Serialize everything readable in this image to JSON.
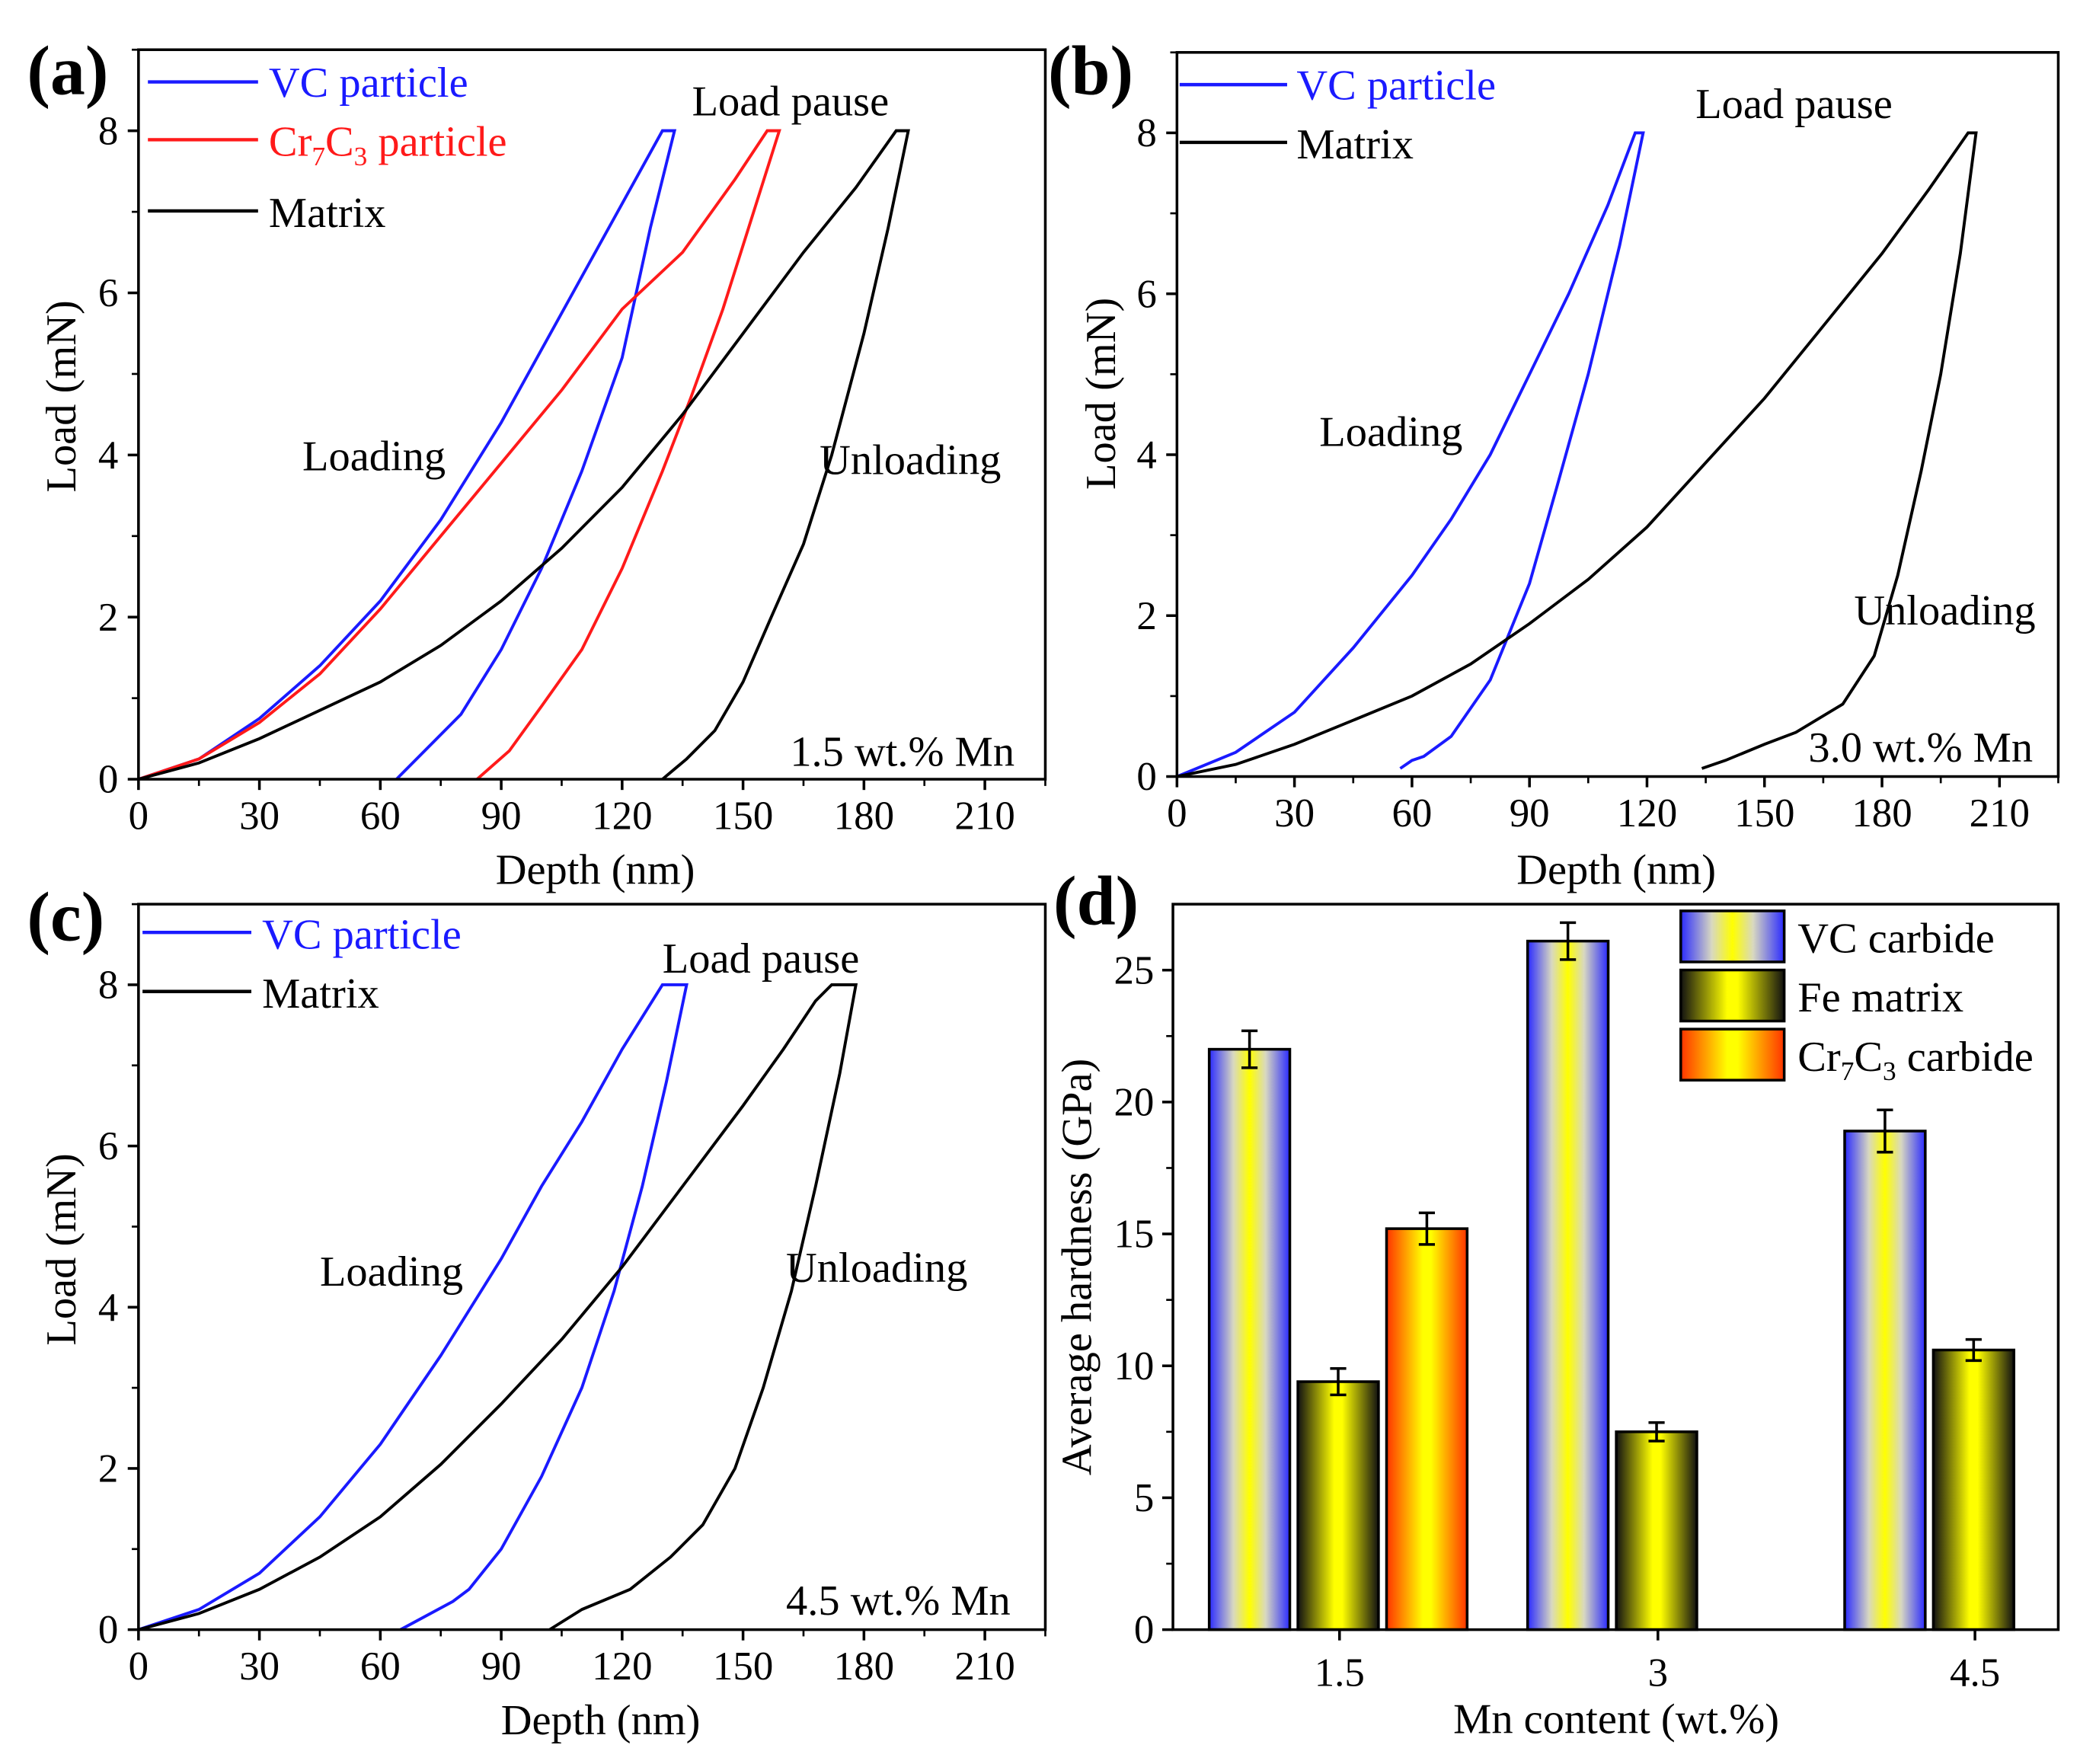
{
  "chart_data": [
    {
      "type": "line",
      "panel_label": "(a)",
      "xlabel": "Depth (nm)",
      "ylabel": "Load (mN)",
      "xlim": [
        0,
        225
      ],
      "ylim": [
        0,
        9
      ],
      "xticks": [
        "0",
        "30",
        "60",
        "90",
        "120",
        "150",
        "180",
        "210"
      ],
      "yticks": [
        "0",
        "2",
        "4",
        "6",
        "8"
      ],
      "annotations": {
        "load_pause": "Load pause",
        "loading": "Loading",
        "unloading": "Unloading",
        "condition": "1.5 wt.% Mn"
      },
      "legend_position": "top-left",
      "series": [
        {
          "name": "VC particle",
          "color": "#1a1aff",
          "points": [
            [
              0,
              0
            ],
            [
              15,
              0.25
            ],
            [
              30,
              0.75
            ],
            [
              45,
              1.4
            ],
            [
              60,
              2.2
            ],
            [
              75,
              3.2
            ],
            [
              90,
              4.4
            ],
            [
              100,
              5.3
            ],
            [
              110,
              6.2
            ],
            [
              120,
              7.1
            ],
            [
              130,
              8
            ],
            [
              133,
              8
            ],
            [
              127,
              6.8
            ],
            [
              120,
              5.2
            ],
            [
              110,
              3.8
            ],
            [
              100,
              2.6
            ],
            [
              90,
              1.6
            ],
            [
              80,
              0.8
            ],
            [
              70,
              0.3
            ],
            [
              64,
              0
            ]
          ]
        },
        {
          "name": "Cr7C3 particle",
          "name_parts": {
            "base1": "Cr",
            "sub1": "7",
            "base2": "C",
            "sub2": "3",
            "rest": " particle"
          },
          "color": "#ff1a1a",
          "points": [
            [
              0,
              0
            ],
            [
              15,
              0.25
            ],
            [
              30,
              0.7
            ],
            [
              45,
              1.3
            ],
            [
              60,
              2.1
            ],
            [
              75,
              3
            ],
            [
              90,
              3.9
            ],
            [
              105,
              4.8
            ],
            [
              120,
              5.8
            ],
            [
              135,
              6.5
            ],
            [
              148,
              7.4
            ],
            [
              156,
              8
            ],
            [
              159,
              8
            ],
            [
              152,
              6.9
            ],
            [
              145,
              5.8
            ],
            [
              137,
              4.7
            ],
            [
              130,
              3.8
            ],
            [
              120,
              2.6
            ],
            [
              110,
              1.6
            ],
            [
              100,
              0.9
            ],
            [
              92,
              0.35
            ],
            [
              84,
              0
            ]
          ]
        },
        {
          "name": "Matrix",
          "color": "#000000",
          "points": [
            [
              0,
              0
            ],
            [
              15,
              0.2
            ],
            [
              30,
              0.5
            ],
            [
              45,
              0.85
            ],
            [
              60,
              1.2
            ],
            [
              75,
              1.65
            ],
            [
              90,
              2.2
            ],
            [
              105,
              2.85
            ],
            [
              120,
              3.6
            ],
            [
              135,
              4.5
            ],
            [
              150,
              5.5
            ],
            [
              165,
              6.5
            ],
            [
              178,
              7.3
            ],
            [
              188,
              8
            ],
            [
              191,
              8
            ],
            [
              186,
              6.8
            ],
            [
              180,
              5.5
            ],
            [
              172,
              4
            ],
            [
              165,
              2.9
            ],
            [
              157,
              2
            ],
            [
              150,
              1.2
            ],
            [
              143,
              0.6
            ],
            [
              136,
              0.25
            ],
            [
              130,
              0
            ]
          ]
        }
      ]
    },
    {
      "type": "line",
      "panel_label": "(b)",
      "xlabel": "Depth (nm)",
      "ylabel": "Load (mN)",
      "xlim": [
        0,
        225
      ],
      "ylim": [
        0,
        9
      ],
      "xticks": [
        "0",
        "30",
        "60",
        "90",
        "120",
        "150",
        "180",
        "210"
      ],
      "yticks": [
        "0",
        "2",
        "4",
        "6",
        "8"
      ],
      "annotations": {
        "load_pause": "Load pause",
        "loading": "Loading",
        "unloading": "Unloading",
        "condition": "3.0 wt.% Mn"
      },
      "legend_position": "top-left",
      "series": [
        {
          "name": "VC particle",
          "color": "#1a1aff",
          "points": [
            [
              0,
              0
            ],
            [
              15,
              0.3
            ],
            [
              30,
              0.8
            ],
            [
              45,
              1.6
            ],
            [
              60,
              2.5
            ],
            [
              70,
              3.2
            ],
            [
              80,
              4
            ],
            [
              90,
              5
            ],
            [
              100,
              6
            ],
            [
              110,
              7.1
            ],
            [
              117,
              8
            ],
            [
              119,
              8
            ],
            [
              113,
              6.6
            ],
            [
              105,
              5
            ],
            [
              97,
              3.6
            ],
            [
              90,
              2.4
            ],
            [
              80,
              1.2
            ],
            [
              70,
              0.5
            ],
            [
              63,
              0.25
            ],
            [
              60,
              0.2
            ],
            [
              57,
              0.1
            ]
          ]
        },
        {
          "name": "Matrix",
          "color": "#000000",
          "points": [
            [
              0,
              0
            ],
            [
              15,
              0.15
            ],
            [
              30,
              0.4
            ],
            [
              45,
              0.7
            ],
            [
              60,
              1
            ],
            [
              75,
              1.4
            ],
            [
              90,
              1.9
            ],
            [
              105,
              2.45
            ],
            [
              120,
              3.1
            ],
            [
              135,
              3.9
            ],
            [
              150,
              4.7
            ],
            [
              165,
              5.6
            ],
            [
              180,
              6.5
            ],
            [
              192,
              7.3
            ],
            [
              202,
              8
            ],
            [
              204,
              8
            ],
            [
              200,
              6.5
            ],
            [
              195,
              5
            ],
            [
              190,
              3.8
            ],
            [
              184,
              2.5
            ],
            [
              178,
              1.5
            ],
            [
              170,
              0.9
            ],
            [
              158,
              0.55
            ],
            [
              150,
              0.4
            ],
            [
              140,
              0.2
            ],
            [
              134,
              0.1
            ]
          ]
        }
      ]
    },
    {
      "type": "line",
      "panel_label": "(c)",
      "xlabel": "Depth (nm)",
      "ylabel": "Load (mN)",
      "xlim": [
        0,
        225
      ],
      "ylim": [
        0,
        9
      ],
      "xticks": [
        "0",
        "30",
        "60",
        "90",
        "120",
        "150",
        "180",
        "210"
      ],
      "yticks": [
        "0",
        "2",
        "4",
        "6",
        "8"
      ],
      "annotations": {
        "load_pause": "Load pause",
        "loading": "Loading",
        "unloading": "Unloading",
        "condition": "4.5 wt.% Mn"
      },
      "legend_position": "top-left",
      "series": [
        {
          "name": "VC particle",
          "color": "#1a1aff",
          "points": [
            [
              0,
              0
            ],
            [
              15,
              0.25
            ],
            [
              30,
              0.7
            ],
            [
              45,
              1.4
            ],
            [
              60,
              2.3
            ],
            [
              75,
              3.4
            ],
            [
              90,
              4.6
            ],
            [
              100,
              5.5
            ],
            [
              110,
              6.3
            ],
            [
              120,
              7.2
            ],
            [
              130,
              8
            ],
            [
              136,
              8
            ],
            [
              131,
              6.8
            ],
            [
              125,
              5.5
            ],
            [
              118,
              4.2
            ],
            [
              110,
              3
            ],
            [
              100,
              1.9
            ],
            [
              90,
              1
            ],
            [
              82,
              0.5
            ],
            [
              78,
              0.35
            ],
            [
              65,
              0
            ]
          ]
        },
        {
          "name": "Matrix",
          "color": "#000000",
          "points": [
            [
              0,
              0
            ],
            [
              15,
              0.2
            ],
            [
              30,
              0.5
            ],
            [
              45,
              0.9
            ],
            [
              60,
              1.4
            ],
            [
              75,
              2.05
            ],
            [
              90,
              2.8
            ],
            [
              105,
              3.6
            ],
            [
              120,
              4.5
            ],
            [
              135,
              5.5
            ],
            [
              150,
              6.5
            ],
            [
              160,
              7.2
            ],
            [
              168,
              7.8
            ],
            [
              172,
              8
            ],
            [
              178,
              8
            ],
            [
              174,
              6.9
            ],
            [
              168,
              5.5
            ],
            [
              162,
              4.2
            ],
            [
              155,
              3
            ],
            [
              148,
              2
            ],
            [
              140,
              1.3
            ],
            [
              132,
              0.9
            ],
            [
              122,
              0.5
            ],
            [
              110,
              0.25
            ],
            [
              102,
              0
            ]
          ]
        }
      ]
    },
    {
      "type": "bar",
      "panel_label": "(d)",
      "xlabel": "Mn content (wt.%)",
      "ylabel": "Average hardness (GPa)",
      "ylim": [
        0,
        27.5
      ],
      "categories": [
        "1.5",
        "3",
        "4.5"
      ],
      "yticks": [
        "0",
        "5",
        "10",
        "15",
        "20",
        "25"
      ],
      "legend_position": "top-right",
      "series": [
        {
          "name": "VC carbide",
          "gradient": [
            "#2a2aff",
            "#ffff00"
          ],
          "values": [
            22.0,
            26.1,
            18.9
          ],
          "errors": [
            0.7,
            0.7,
            0.8
          ]
        },
        {
          "name": "Fe matrix",
          "gradient": [
            "#000000",
            "#ffff00"
          ],
          "values": [
            9.4,
            7.5,
            10.6
          ],
          "errors": [
            0.5,
            0.35,
            0.4
          ]
        },
        {
          "name": "Cr7C3 carbide",
          "name_parts": {
            "base1": "Cr",
            "sub1": "7",
            "base2": "C",
            "sub2": "3",
            "rest": " carbide"
          },
          "gradient": [
            "#ff3300",
            "#ffff00"
          ],
          "values": [
            15.2,
            null,
            null
          ],
          "errors": [
            0.6,
            null,
            null
          ]
        }
      ]
    }
  ]
}
